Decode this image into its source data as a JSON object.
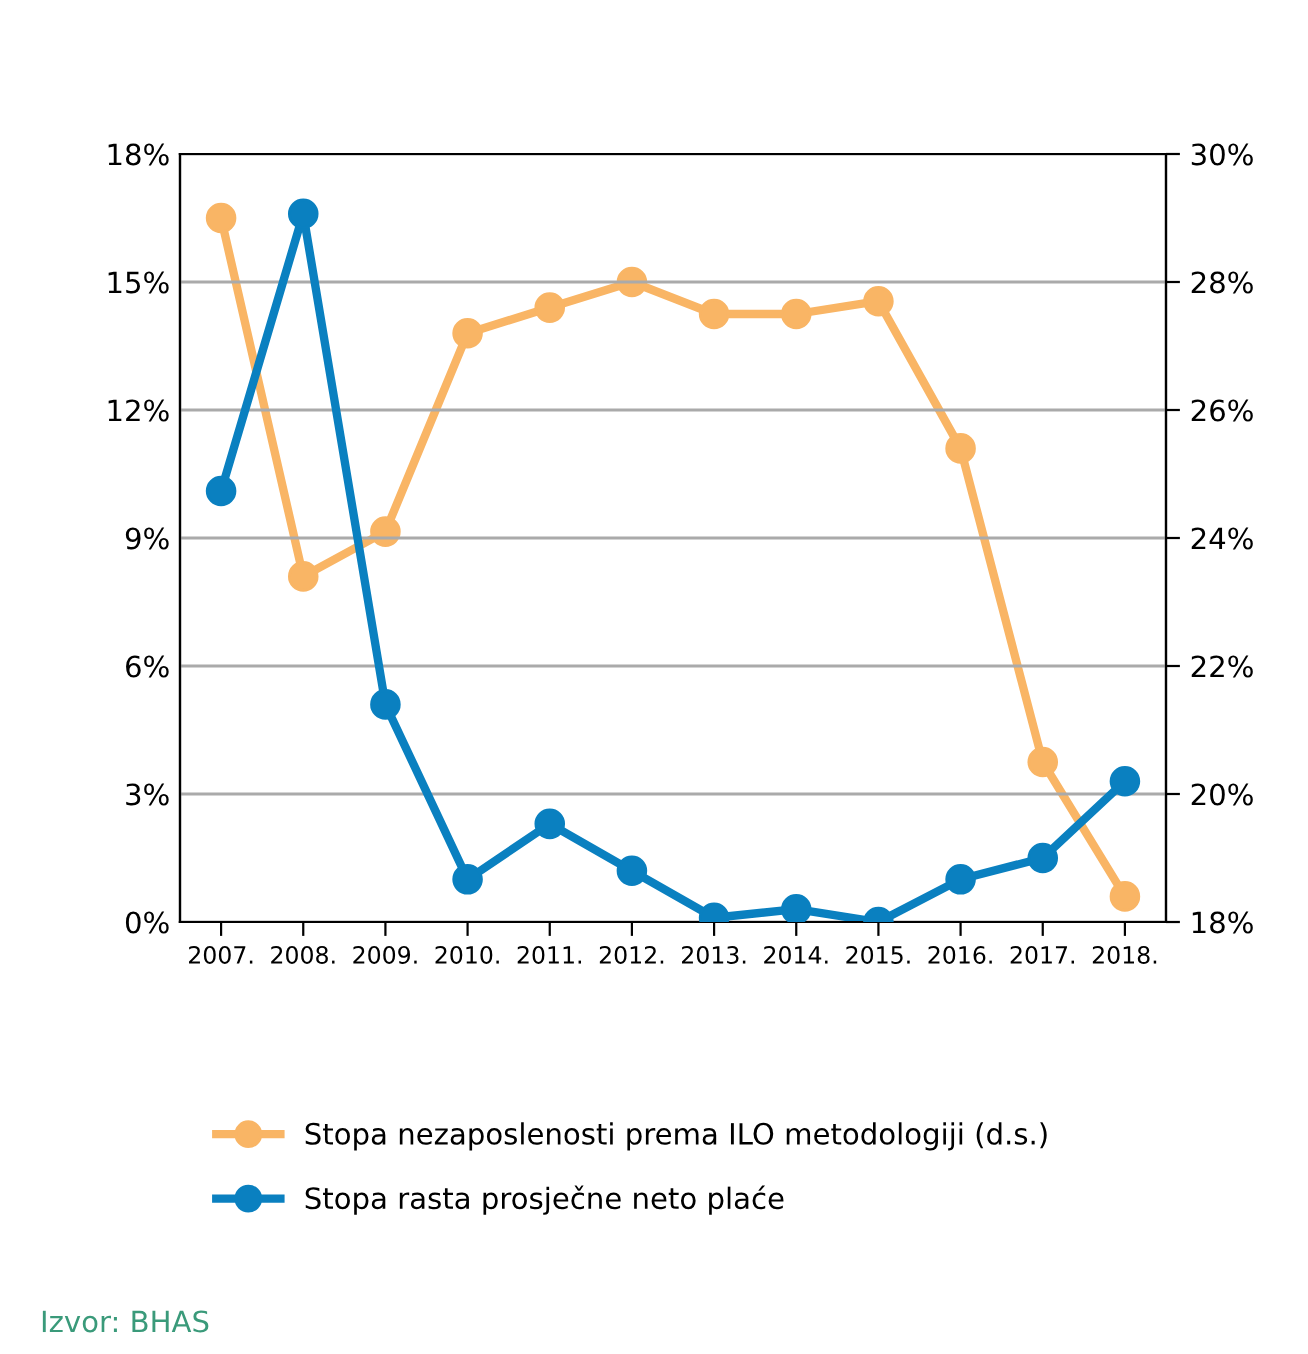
{
  "chart_data": {
    "type": "line",
    "categories": [
      "2007.",
      "2008.",
      "2009.",
      "2010.",
      "2011.",
      "2012.",
      "2013.",
      "2014.",
      "2015.",
      "2016.",
      "2017.",
      "2018."
    ],
    "series": [
      {
        "name": "Stopa nezaposlenosti prema ILO metodologiji (d.s.)",
        "color": "#f9b565",
        "axis": "y2",
        "values": [
          29.0,
          23.4,
          24.1,
          27.2,
          27.6,
          28.0,
          27.5,
          27.5,
          27.7,
          25.4,
          20.5,
          18.4
        ]
      },
      {
        "name": "Stopa rasta prosječne neto plaće",
        "color": "#0a80c0",
        "values": [
          10.1,
          16.6,
          5.1,
          1.0,
          2.3,
          1.2,
          0.1,
          0.3,
          0.0,
          1.0,
          1.5,
          3.3
        ]
      }
    ],
    "ylim": [
      0,
      18
    ],
    "yticks": [
      {
        "value": 0,
        "label": "0%"
      },
      {
        "value": 3,
        "label": "3%"
      },
      {
        "value": 6,
        "label": "6%"
      },
      {
        "value": 9,
        "label": "9%"
      },
      {
        "value": 12,
        "label": "12%"
      },
      {
        "value": 15,
        "label": "15%"
      },
      {
        "value": 18,
        "label": "18%"
      }
    ],
    "y2lim": [
      18,
      30
    ],
    "y2ticks": [
      {
        "value": 18,
        "label": "18%"
      },
      {
        "value": 20,
        "label": "20%"
      },
      {
        "value": 22,
        "label": "22%"
      },
      {
        "value": 24,
        "label": "24%"
      },
      {
        "value": 26,
        "label": "26%"
      },
      {
        "value": 28,
        "label": "28%"
      },
      {
        "value": 30,
        "label": "30%"
      }
    ],
    "grid": "y",
    "legend": "bottom",
    "marker": "circle",
    "line_style": "solid",
    "annotations": [
      "Izvor: BHAS"
    ]
  }
}
